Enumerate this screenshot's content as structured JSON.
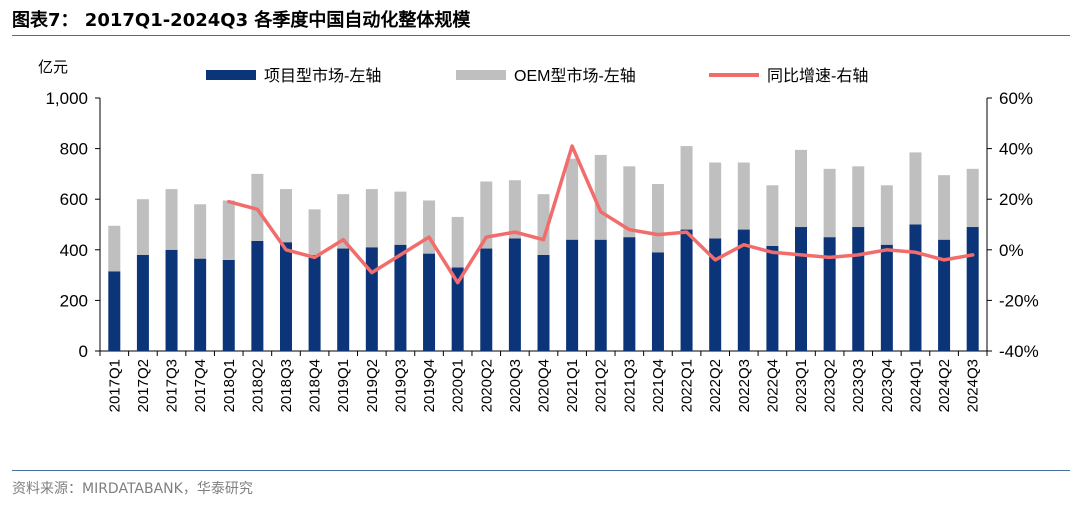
{
  "figure_title": "图表7： 2017Q1-2024Q3 各季度中国自动化整体规模",
  "source": "资料来源：MIRDATABANK，华泰研究",
  "colors": {
    "project": "#0c3478",
    "oem": "#bfbfbf",
    "yoy": "#f26c6c",
    "rule": "#4a6f9f"
  },
  "chart_data": {
    "type": "bar",
    "stacked": true,
    "left_axis_unit": "亿元",
    "ylim": [
      0,
      1000
    ],
    "yticks": [
      "0",
      "200",
      "400",
      "600",
      "800",
      "1,000"
    ],
    "y2lim": [
      -40,
      60
    ],
    "y2ticks": [
      "-40%",
      "-20%",
      "0%",
      "20%",
      "40%",
      "60%"
    ],
    "legend_position": "top",
    "categories": [
      "2017Q1",
      "2017Q2",
      "2017Q3",
      "2017Q4",
      "2018Q1",
      "2018Q2",
      "2018Q3",
      "2018Q4",
      "2019Q1",
      "2019Q2",
      "2019Q3",
      "2019Q4",
      "2020Q1",
      "2020Q2",
      "2020Q3",
      "2020Q4",
      "2021Q1",
      "2021Q2",
      "2021Q3",
      "2021Q4",
      "2022Q1",
      "2022Q2",
      "2022Q3",
      "2022Q4",
      "2023Q1",
      "2023Q2",
      "2023Q3",
      "2023Q4",
      "2024Q1",
      "2024Q2",
      "2024Q3"
    ],
    "series": [
      {
        "name": "项目型市场-左轴",
        "type": "bar",
        "axis": "left",
        "values": [
          315,
          380,
          400,
          365,
          360,
          435,
          430,
          380,
          405,
          410,
          420,
          385,
          330,
          405,
          445,
          380,
          440,
          440,
          450,
          390,
          480,
          445,
          480,
          415,
          490,
          450,
          490,
          420,
          500,
          440,
          490
        ]
      },
      {
        "name": "OEM型市场-左轴",
        "type": "bar",
        "axis": "left",
        "values": [
          180,
          220,
          240,
          215,
          235,
          265,
          210,
          180,
          215,
          230,
          210,
          210,
          200,
          265,
          230,
          240,
          320,
          335,
          280,
          270,
          330,
          300,
          265,
          240,
          305,
          270,
          240,
          235,
          285,
          255,
          230
        ]
      },
      {
        "name": "同比增速-右轴",
        "type": "line",
        "axis": "right",
        "values": [
          null,
          null,
          null,
          null,
          19,
          16,
          0,
          -3,
          4,
          -9,
          -2,
          5,
          -13,
          5,
          7,
          4,
          41,
          15,
          8,
          6,
          7,
          -4,
          2,
          -1,
          -2,
          -3,
          -2,
          0,
          -1,
          -4,
          -2
        ]
      }
    ]
  }
}
